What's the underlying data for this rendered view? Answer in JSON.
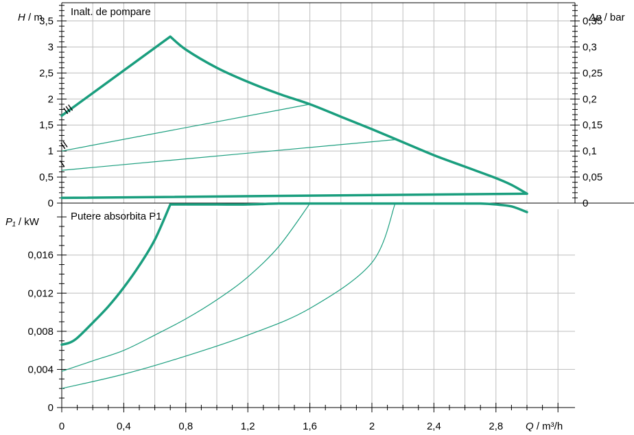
{
  "colors": {
    "curve": "#1a9e7e",
    "grid": "#bdbdbd",
    "axis": "#000000"
  },
  "chart_data": [
    {
      "type": "line",
      "panel": "top",
      "title": "Inalt. de pompare",
      "ylabel_sym": "H",
      "ylabel_unit": " / m",
      "y2label_sym": "Δp",
      "y2label_unit": " / bar",
      "ylim": [
        0,
        3.85
      ],
      "y2lim": [
        0,
        0.385
      ],
      "yticks": [
        0,
        0.5,
        1,
        1.5,
        2,
        2.5,
        3,
        3.5
      ],
      "yticklabels": [
        "0",
        "0,5",
        "1",
        "1,5",
        "2",
        "2,5",
        "3",
        "3,5"
      ],
      "y2ticks": [
        0,
        0.05,
        0.1,
        0.15,
        0.2,
        0.25,
        0.3,
        0.35
      ],
      "y2ticklabels": [
        "0",
        "0,05",
        "0,1",
        "0,15",
        "0,2",
        "0,25",
        "0,3",
        "0,35"
      ],
      "grid": true,
      "annotations": [
        "III",
        "II",
        "I"
      ],
      "series": [
        {
          "style": "thick",
          "x": [
            0,
            0.7,
            0.8,
            1.0,
            1.2,
            1.4,
            1.6,
            1.8,
            2.0,
            2.2,
            2.4,
            2.6,
            2.8,
            2.9,
            3.0
          ],
          "y": [
            1.68,
            3.2,
            2.95,
            2.6,
            2.33,
            2.1,
            1.9,
            1.66,
            1.42,
            1.17,
            0.92,
            0.7,
            0.48,
            0.35,
            0.18
          ]
        },
        {
          "style": "thick",
          "x": [
            0,
            3.0
          ],
          "y": [
            0.1,
            0.18
          ]
        },
        {
          "style": "thin",
          "x": [
            0,
            1.6
          ],
          "y": [
            1.0,
            1.9
          ]
        },
        {
          "style": "thin",
          "x": [
            0,
            2.15
          ],
          "y": [
            0.63,
            1.22
          ]
        }
      ]
    },
    {
      "type": "line",
      "panel": "bottom",
      "title": "Putere absorbita P1",
      "ylabel_sym": "P₁",
      "ylabel_unit": " / kW",
      "xlabel_sym": "Q",
      "xlabel_unit": " / m³/h",
      "ylim": [
        0,
        0.0208
      ],
      "xlim": [
        0,
        3.2
      ],
      "xticks": [
        0,
        0.4,
        0.8,
        1.2,
        1.6,
        2.0,
        2.4,
        2.8
      ],
      "xticklabels": [
        "0",
        "0,4",
        "0,8",
        "1,2",
        "1,6",
        "2",
        "2,4",
        "2,8"
      ],
      "yticks": [
        0,
        0.004,
        0.008,
        0.012,
        0.016
      ],
      "yticklabels": [
        "0",
        "0,004",
        "0,008",
        "0,012",
        "0,016"
      ],
      "grid": true,
      "series": [
        {
          "style": "thick",
          "x": [
            0,
            0.05,
            0.1,
            0.2,
            0.3,
            0.4,
            0.5,
            0.6,
            0.7,
            0.8,
            1.0,
            1.2,
            1.4,
            1.6,
            1.8,
            2.0,
            2.2,
            2.4,
            2.6,
            2.7,
            2.8,
            2.9,
            3.0
          ],
          "y": [
            0.0066,
            0.0068,
            0.0073,
            0.0089,
            0.0106,
            0.0126,
            0.0149,
            0.0176,
            0.0213,
            0.0213,
            0.0213,
            0.0213,
            0.0214,
            0.0214,
            0.0214,
            0.0214,
            0.0214,
            0.0214,
            0.0214,
            0.0214,
            0.0213,
            0.0211,
            0.0205
          ]
        },
        {
          "style": "thin",
          "x": [
            0,
            0.2,
            0.4,
            0.6,
            0.8,
            1.0,
            1.2,
            1.4,
            1.6
          ],
          "y": [
            0.0038,
            0.0049,
            0.006,
            0.0076,
            0.0093,
            0.0113,
            0.0137,
            0.0169,
            0.0214
          ]
        },
        {
          "style": "thin",
          "x": [
            0,
            0.4,
            0.8,
            1.2,
            1.6,
            2.0,
            2.15
          ],
          "y": [
            0.002,
            0.0035,
            0.0054,
            0.0076,
            0.0104,
            0.0152,
            0.0214
          ]
        }
      ]
    }
  ]
}
